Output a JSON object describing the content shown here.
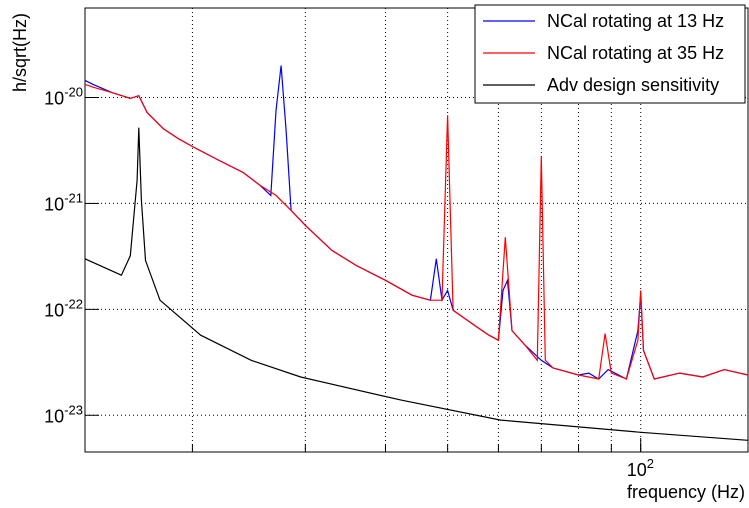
{
  "chart_data": {
    "type": "line",
    "x_label": "frequency (Hz)",
    "y_label": "h/sqrt(Hz)",
    "xlog": true,
    "ylog": true,
    "grid": true,
    "legend": "top-right",
    "xlim": [
      13.6,
      147
    ],
    "ylim": [
      4.5e-24,
      7e-20
    ],
    "xticks": [
      {
        "value": 100,
        "label": "10",
        "exponent": "2"
      }
    ],
    "xgrid": [
      20,
      30,
      40,
      50,
      60,
      70,
      80,
      90,
      100
    ],
    "yticks": [
      {
        "value": 1e-23,
        "label": "10",
        "exponent": "-23"
      },
      {
        "value": 1e-22,
        "label": "10",
        "exponent": "-22"
      },
      {
        "value": 1e-21,
        "label": "10",
        "exponent": "-21"
      },
      {
        "value": 1e-20,
        "label": "10",
        "exponent": "-20"
      }
    ],
    "series": [
      {
        "name": "NCal rotating at 13 Hz",
        "color": "#0000ff",
        "x": [
          13.6,
          14,
          15,
          16,
          16.5,
          17,
          18,
          19,
          20,
          22,
          24,
          25.5,
          26.5,
          27,
          27.5,
          28,
          28.5,
          30,
          33,
          36,
          40,
          44,
          47,
          48,
          49,
          50,
          51,
          55,
          58,
          60,
          61,
          62,
          63,
          66,
          70,
          73,
          80,
          83,
          86,
          89,
          95,
          99,
          100,
          101,
          105,
          115,
          125,
          135,
          147
        ],
        "values": [
          1.45e-20,
          1.33e-20,
          1.11e-20,
          9.8e-21,
          1.04e-20,
          7.2e-21,
          5.1e-21,
          4.1e-21,
          3.45e-21,
          2.55e-21,
          1.96e-21,
          1.48e-21,
          1.19e-21,
          7.5e-21,
          2e-20,
          4.9e-21,
          8.6e-22,
          6.2e-22,
          3.6e-22,
          2.6e-22,
          1.88e-22,
          1.36e-22,
          1.22e-22,
          3e-22,
          1.22e-22,
          1.51e-22,
          9.8e-23,
          7.1e-23,
          5.7e-23,
          5.1e-23,
          1.51e-22,
          1.88e-22,
          6.3e-23,
          4.6e-23,
          3.3e-23,
          2.8e-23,
          2.4e-23,
          2.5e-23,
          2.2e-23,
          2.7e-23,
          2.2e-23,
          6.3e-23,
          1.4e-22,
          4.1e-23,
          2.2e-23,
          2.5e-23,
          2.3e-23,
          2.7e-23,
          2.4e-23
        ]
      },
      {
        "name": "NCal rotating at 35 Hz",
        "color": "#ff0000",
        "x": [
          13.6,
          14,
          15,
          16,
          16.5,
          17,
          18,
          19,
          20,
          22,
          24,
          25.5,
          27,
          28.5,
          30,
          33,
          36,
          40,
          44,
          47,
          49,
          50,
          51,
          55,
          58,
          60,
          61.5,
          63,
          66,
          69,
          70,
          71,
          73,
          80,
          86,
          88,
          90,
          95,
          99,
          100,
          101,
          105,
          115,
          125,
          135,
          147
        ],
        "values": [
          1.33e-20,
          1.25e-20,
          1.11e-20,
          9.8e-21,
          1.04e-20,
          7.2e-21,
          5.1e-21,
          4.1e-21,
          3.45e-21,
          2.55e-21,
          1.96e-21,
          1.48e-21,
          1.19e-21,
          8.6e-22,
          6.2e-22,
          3.6e-22,
          2.6e-22,
          1.88e-22,
          1.36e-22,
          1.22e-22,
          1.22e-22,
          6.8e-21,
          9.8e-23,
          7.1e-23,
          5.7e-23,
          5.1e-23,
          4.8e-22,
          6.3e-23,
          4.6e-23,
          3.3e-23,
          2.8e-21,
          3.3e-23,
          2.8e-23,
          2.4e-23,
          2.2e-23,
          5.9e-23,
          2.5e-23,
          2.2e-23,
          5.1e-23,
          1.51e-22,
          4.1e-23,
          2.2e-23,
          2.5e-23,
          2.3e-23,
          2.7e-23,
          2.4e-23
        ]
      },
      {
        "name": "Adv design sensitivity",
        "color": "#000000",
        "x": [
          13.6,
          15.5,
          16,
          16.4,
          16.5,
          16.65,
          16.9,
          17.8,
          20.6,
          24.7,
          29.5,
          42.3,
          60.5,
          100,
          147
        ],
        "values": [
          3e-22,
          2.1e-22,
          3.2e-22,
          1.65e-21,
          5.2e-21,
          1.07e-21,
          2.9e-22,
          1.22e-22,
          5.7e-23,
          3.3e-23,
          2.3e-23,
          1.39e-23,
          9e-24,
          6.9e-24,
          5.8e-24
        ]
      }
    ]
  }
}
